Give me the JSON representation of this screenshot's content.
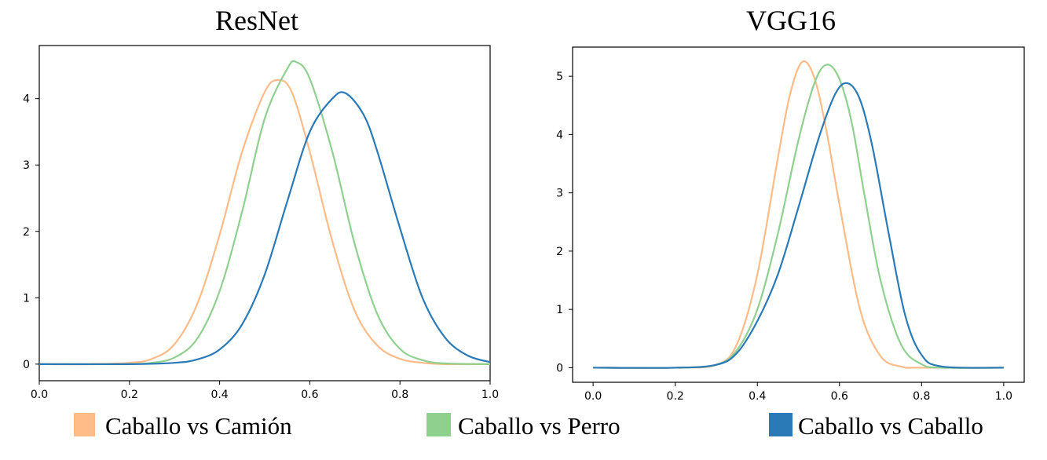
{
  "colors": {
    "caballo_vs_camion": "#ffbb88",
    "caballo_vs_perro": "#8fd08f",
    "caballo_vs_caballo": "#2a7ab8"
  },
  "legend": [
    {
      "label": "Caballo vs Camión",
      "color": "#ffbb88"
    },
    {
      "label": "Caballo vs Perro",
      "color": "#8fd08f"
    },
    {
      "label": "Caballo vs Caballo",
      "color": "#2a7ab8"
    }
  ],
  "chart_data": [
    {
      "type": "line",
      "title": "ResNet",
      "xlim": [
        0.0,
        1.0
      ],
      "ylim": [
        -0.25,
        4.8
      ],
      "xticks": [
        "0.0",
        "0.2",
        "0.4",
        "0.6",
        "0.8",
        "1.0"
      ],
      "yticks": [
        "0",
        "1",
        "2",
        "3",
        "4"
      ],
      "series": [
        {
          "name": "Caballo vs Camión",
          "color": "#ffbb88",
          "x": [
            0.0,
            0.1,
            0.2,
            0.25,
            0.3,
            0.35,
            0.4,
            0.45,
            0.5,
            0.53,
            0.56,
            0.6,
            0.65,
            0.7,
            0.75,
            0.8,
            0.85,
            0.9,
            1.0
          ],
          "y": [
            0.0,
            0.0,
            0.02,
            0.08,
            0.3,
            0.9,
            1.95,
            3.2,
            4.1,
            4.28,
            4.1,
            3.2,
            1.85,
            0.8,
            0.28,
            0.08,
            0.02,
            0.0,
            0.0
          ]
        },
        {
          "name": "Caballo vs Perro",
          "color": "#8fd08f",
          "x": [
            0.0,
            0.1,
            0.2,
            0.25,
            0.3,
            0.35,
            0.4,
            0.45,
            0.5,
            0.55,
            0.57,
            0.6,
            0.65,
            0.7,
            0.75,
            0.8,
            0.85,
            0.9,
            1.0
          ],
          "y": [
            0.0,
            0.0,
            0.0,
            0.02,
            0.1,
            0.38,
            1.1,
            2.3,
            3.7,
            4.45,
            4.55,
            4.3,
            3.2,
            1.8,
            0.75,
            0.23,
            0.06,
            0.01,
            0.0
          ]
        },
        {
          "name": "Caballo vs Caballo",
          "color": "#2a7ab8",
          "x": [
            0.0,
            0.2,
            0.3,
            0.35,
            0.4,
            0.45,
            0.5,
            0.55,
            0.6,
            0.65,
            0.68,
            0.72,
            0.75,
            0.8,
            0.85,
            0.9,
            0.95,
            1.0
          ],
          "y": [
            0.0,
            0.0,
            0.02,
            0.07,
            0.22,
            0.6,
            1.35,
            2.45,
            3.5,
            4.0,
            4.08,
            3.75,
            3.2,
            2.05,
            1.0,
            0.4,
            0.13,
            0.03
          ]
        }
      ]
    },
    {
      "type": "line",
      "title": "VGG16",
      "xlim": [
        -0.05,
        1.05
      ],
      "ylim": [
        -0.25,
        5.5
      ],
      "xticks": [
        "0.0",
        "0.2",
        "0.4",
        "0.6",
        "0.8",
        "1.0"
      ],
      "yticks": [
        "0",
        "1",
        "2",
        "3",
        "4",
        "5"
      ],
      "series": [
        {
          "name": "Caballo vs Camión",
          "color": "#ffbb88",
          "x": [
            0.0,
            0.2,
            0.3,
            0.35,
            0.4,
            0.45,
            0.48,
            0.51,
            0.54,
            0.57,
            0.6,
            0.65,
            0.7,
            0.75,
            0.8,
            1.0
          ],
          "y": [
            0.0,
            0.0,
            0.05,
            0.4,
            1.6,
            3.6,
            4.7,
            5.25,
            4.95,
            4.0,
            2.8,
            1.0,
            0.2,
            0.02,
            0.0,
            0.0
          ]
        },
        {
          "name": "Caballo vs Perro",
          "color": "#8fd08f",
          "x": [
            0.0,
            0.2,
            0.3,
            0.35,
            0.4,
            0.45,
            0.5,
            0.54,
            0.57,
            0.6,
            0.63,
            0.66,
            0.7,
            0.75,
            0.8,
            0.85,
            1.0
          ],
          "y": [
            0.0,
            0.0,
            0.05,
            0.3,
            1.0,
            2.3,
            3.9,
            4.9,
            5.2,
            4.95,
            4.2,
            3.0,
            1.5,
            0.4,
            0.06,
            0.0,
            0.0
          ]
        },
        {
          "name": "Caballo vs Caballo",
          "color": "#2a7ab8",
          "x": [
            0.0,
            0.2,
            0.3,
            0.35,
            0.4,
            0.45,
            0.5,
            0.55,
            0.59,
            0.62,
            0.65,
            0.68,
            0.72,
            0.76,
            0.8,
            0.85,
            1.0
          ],
          "y": [
            0.0,
            0.0,
            0.05,
            0.25,
            0.8,
            1.6,
            2.75,
            3.95,
            4.7,
            4.88,
            4.6,
            3.8,
            2.3,
            0.9,
            0.22,
            0.02,
            0.0
          ]
        }
      ]
    }
  ]
}
